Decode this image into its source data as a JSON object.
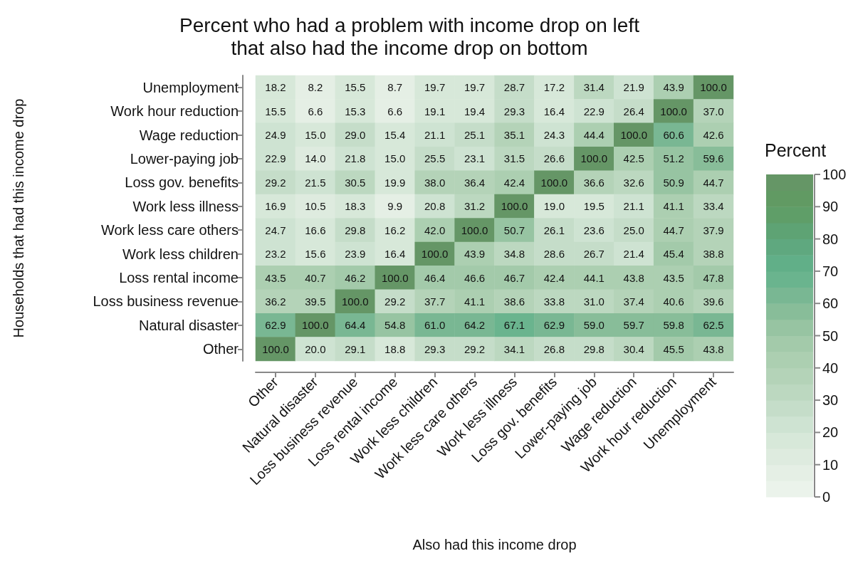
{
  "chart_data": {
    "type": "heatmap",
    "title": "Percent who had a problem with income drop on left\nthat also had the income drop on bottom",
    "xlabel": "Also had this income drop",
    "ylabel": "Households that had this income drop",
    "clabel": "Percent",
    "categories": [
      "Other",
      "Natural disaster",
      "Loss business revenue",
      "Loss rental income",
      "Work less children",
      "Work less care others",
      "Work less illness",
      "Loss gov. benefits",
      "Lower-paying job",
      "Wage reduction",
      "Work hour reduction",
      "Unemployment"
    ],
    "y_categories": [
      "Unemployment",
      "Work hour reduction",
      "Wage reduction",
      "Lower-paying job",
      "Loss gov. benefits",
      "Work less illness",
      "Work less care others",
      "Work less children",
      "Loss rental income",
      "Loss business revenue",
      "Natural disaster",
      "Other"
    ],
    "cells": [
      [
        18.2,
        8.2,
        15.5,
        8.7,
        19.7,
        19.7,
        28.7,
        17.2,
        31.4,
        21.9,
        43.9,
        100.0
      ],
      [
        15.5,
        6.6,
        15.3,
        6.6,
        19.1,
        19.4,
        29.3,
        16.4,
        22.9,
        26.4,
        100.0,
        37.0
      ],
      [
        24.9,
        15.0,
        29.0,
        15.4,
        21.1,
        25.1,
        35.1,
        24.3,
        44.4,
        100.0,
        60.6,
        42.6
      ],
      [
        22.9,
        14.0,
        21.8,
        15.0,
        25.5,
        23.1,
        31.5,
        26.6,
        100.0,
        42.5,
        51.2,
        59.6
      ],
      [
        29.2,
        21.5,
        30.5,
        19.9,
        38.0,
        36.4,
        42.4,
        100.0,
        36.6,
        32.6,
        50.9,
        44.7
      ],
      [
        16.9,
        10.5,
        18.3,
        9.9,
        20.8,
        31.2,
        100.0,
        19.0,
        19.5,
        21.1,
        41.1,
        33.4
      ],
      [
        24.7,
        16.6,
        29.8,
        16.2,
        42.0,
        100.0,
        50.7,
        26.1,
        23.6,
        25.0,
        44.7,
        37.9
      ],
      [
        23.2,
        15.6,
        23.9,
        16.4,
        100.0,
        43.9,
        34.8,
        28.6,
        26.7,
        21.4,
        45.4,
        38.8
      ],
      [
        43.5,
        40.7,
        46.2,
        100.0,
        46.4,
        46.6,
        46.7,
        42.4,
        44.1,
        43.8,
        43.5,
        47.8
      ],
      [
        36.2,
        39.5,
        100.0,
        29.2,
        37.7,
        41.1,
        38.6,
        33.8,
        31.0,
        37.4,
        40.6,
        39.6
      ],
      [
        62.9,
        100.0,
        64.4,
        54.8,
        61.0,
        64.2,
        67.1,
        62.9,
        59.0,
        59.7,
        59.8,
        62.5
      ],
      [
        100.0,
        20.0,
        29.1,
        18.8,
        29.3,
        29.2,
        34.1,
        26.8,
        29.8,
        30.4,
        45.5,
        43.8
      ]
    ],
    "cell_labels": [
      [
        "18.2",
        "8.2",
        "15.5",
        "8.7",
        "19.7",
        "19.7",
        "28.7",
        "17.2",
        "31.4",
        "21.9",
        "43.9",
        "100.0"
      ],
      [
        "15.5",
        "6.6",
        "15.3",
        "6.6",
        "19.1",
        "19.4",
        "29.3",
        "16.4",
        "22.9",
        "26.4",
        "100.0",
        "37.0"
      ],
      [
        "24.9",
        "15.0",
        "29.0",
        "15.4",
        "21.1",
        "25.1",
        "35.1",
        "24.3",
        "44.4",
        "100.0",
        "60.6",
        "42.6"
      ],
      [
        "22.9",
        "14.0",
        "21.8",
        "15.0",
        "25.5",
        "23.1",
        "31.5",
        "26.6",
        "100.0",
        "42.5",
        "51.2",
        "59.6"
      ],
      [
        "29.2",
        "21.5",
        "30.5",
        "19.9",
        "38.0",
        "36.4",
        "42.4",
        "100.0",
        "36.6",
        "32.6",
        "50.9",
        "44.7"
      ],
      [
        "16.9",
        "10.5",
        "18.3",
        "9.9",
        "20.8",
        "31.2",
        "100.0",
        "19.0",
        "19.5",
        "21.1",
        "41.1",
        "33.4"
      ],
      [
        "24.7",
        "16.6",
        "29.8",
        "16.2",
        "42.0",
        "100.0",
        "50.7",
        "26.1",
        "23.6",
        "25.0",
        "44.7",
        "37.9"
      ],
      [
        "23.2",
        "15.6",
        "23.9",
        "16.4",
        "100.0",
        "43.9",
        "34.8",
        "28.6",
        "26.7",
        "21.4",
        "45.4",
        "38.8"
      ],
      [
        "43.5",
        "40.7",
        "46.2",
        "100.0",
        "46.4",
        "46.6",
        "46.7",
        "42.4",
        "44.1",
        "43.8",
        "43.5",
        "47.8"
      ],
      [
        "36.2",
        "39.5",
        "100.0",
        "29.2",
        "37.7",
        "41.1",
        "38.6",
        "33.8",
        "31.0",
        "37.4",
        "40.6",
        "39.6"
      ],
      [
        "62.9",
        "100.0",
        "64.4",
        "54.8",
        "61.0",
        "64.2",
        "67.1",
        "62.9",
        "59.0",
        "59.7",
        "59.8",
        "62.5"
      ],
      [
        "100.0",
        "20.0",
        "29.1",
        "18.8",
        "29.3",
        "29.2",
        "34.1",
        "26.8",
        "29.8",
        "30.4",
        "45.5",
        "43.8"
      ]
    ],
    "clim": [
      0,
      100
    ],
    "cticks": [
      0,
      10,
      20,
      30,
      40,
      50,
      60,
      70,
      80,
      90,
      100
    ],
    "data_labels": true
  }
}
